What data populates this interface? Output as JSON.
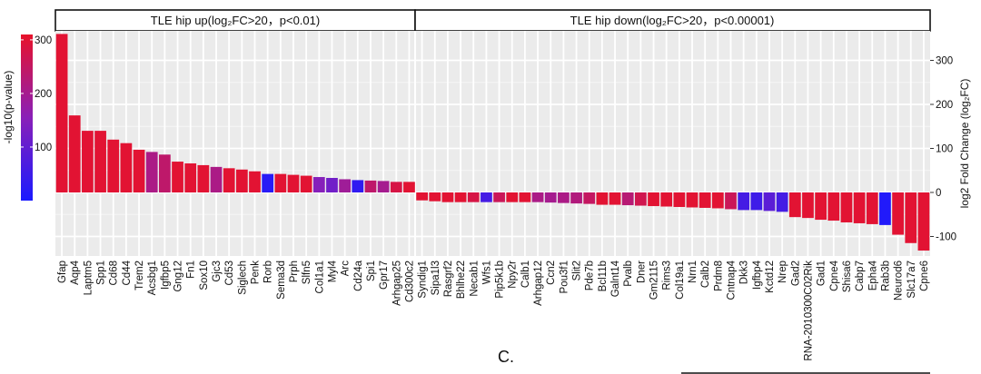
{
  "chart_data": {
    "type": "bar",
    "facets": [
      {
        "label": "TLE hip up(log₂FC>20，p<0.01)"
      },
      {
        "label": "TLE hip down(log₂FC>20，p<0.00001)"
      }
    ],
    "ylabel": "log2 Fold Change (log₂FC)",
    "y_ticks": [
      -100,
      0,
      100,
      200,
      300
    ],
    "ylim": [
      -140,
      375
    ],
    "color_legend": {
      "title": "-log10(p-value)",
      "ticks": [
        100,
        200,
        300
      ],
      "range": [
        0,
        310
      ],
      "colors": [
        "#1a1aff",
        "#e8122a"
      ]
    },
    "categories": [
      "Gfap",
      "Aqp4",
      "Laptm5",
      "Spp1",
      "Cd68",
      "Cd44",
      "Trem2",
      "Acsbg1",
      "Igfbp5",
      "Gng12",
      "Fn1",
      "Sox10",
      "Gjc3",
      "Cd53",
      "Siglech",
      "Penk",
      "Rorb",
      "Sema3d",
      "Prph",
      "Slfn5",
      "Col1a1",
      "Myl4",
      "Arc",
      "Cd24a",
      "Spi1",
      "Gpr17",
      "Arhgap25",
      "Cd300c2",
      "Syndig1",
      "Sipa1l3",
      "Rasgrf2",
      "Bhlhe22",
      "Necab1",
      "Wfs1",
      "Pip5k1b",
      "Npy2r",
      "Calb1",
      "Arhgap12",
      "Ccn2",
      "Pou3f1",
      "Slit2",
      "Pde7b",
      "Bcl11b",
      "Galnt14",
      "Pvalb",
      "Dner",
      "Gm2115",
      "Rims3",
      "Col19a1",
      "Nrn1",
      "Calb2",
      "Prdm8",
      "Cntnap4",
      "Dkk3",
      "Igfbp4",
      "Kctd12",
      "Nrep",
      "Gad2",
      "RNA-2010300C02Rik",
      "Gad1",
      "Cpne4",
      "Shisa6",
      "Cabp7",
      "Epha4",
      "Rab3b",
      "Neurod6",
      "Slc17a7",
      "Cpne6"
    ],
    "series": [
      {
        "values": [
          360,
          175,
          140,
          140,
          120,
          112,
          97,
          92,
          86,
          70,
          66,
          62,
          58,
          55,
          52,
          48,
          42,
          42,
          40,
          38,
          35,
          33,
          30,
          28,
          27,
          26,
          24,
          24,
          -18,
          -20,
          -22,
          -22,
          -22,
          -22,
          -22,
          -22,
          -22,
          -22,
          -23,
          -24,
          -25,
          -26,
          -28,
          -28,
          -29,
          -30,
          -31,
          -32,
          -33,
          -34,
          -35,
          -36,
          -38,
          -40,
          -40,
          -42,
          -44,
          -56,
          -58,
          -62,
          -64,
          -68,
          -70,
          -72,
          -74,
          -96,
          -115,
          -132
        ],
        "pvalue_log10": [
          300,
          300,
          300,
          300,
          300,
          300,
          300,
          210,
          240,
          300,
          300,
          300,
          210,
          300,
          300,
          300,
          20,
          300,
          300,
          300,
          150,
          120,
          190,
          30,
          240,
          200,
          280,
          300,
          300,
          300,
          300,
          300,
          280,
          60,
          260,
          300,
          300,
          210,
          200,
          210,
          220,
          250,
          300,
          300,
          230,
          270,
          300,
          300,
          300,
          300,
          300,
          300,
          260,
          60,
          50,
          90,
          60,
          300,
          300,
          300,
          300,
          300,
          300,
          300,
          10,
          300,
          300,
          300
        ]
      }
    ]
  },
  "panel_letter": "C."
}
